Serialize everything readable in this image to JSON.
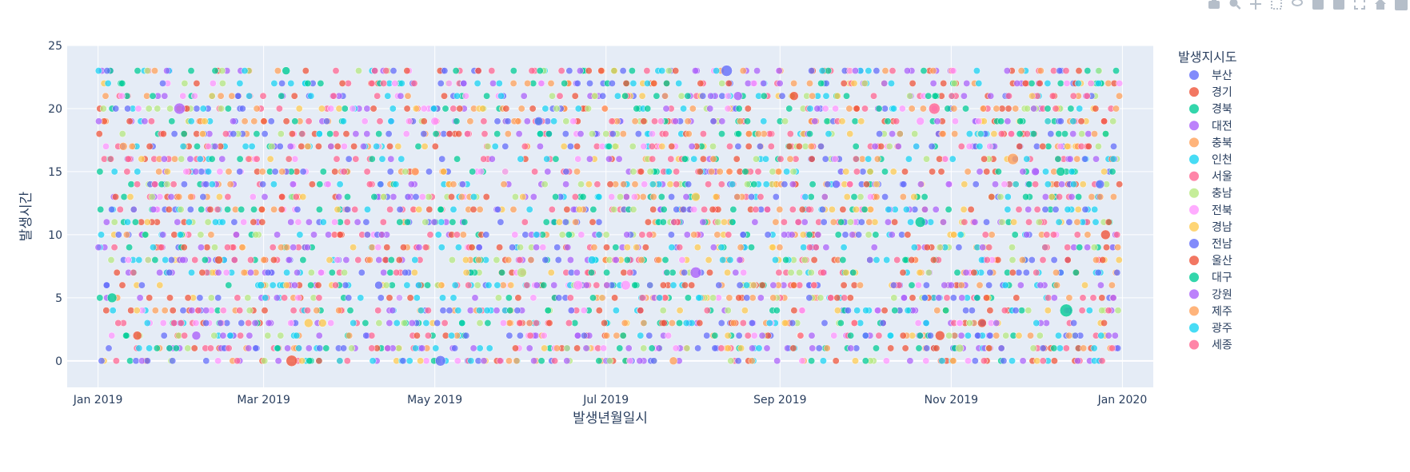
{
  "chart_data": {
    "type": "scatter",
    "title": "",
    "xlabel": "발생년월일시",
    "ylabel": "발생시간",
    "xlim": [
      "2018-12-21",
      "2020-01-12"
    ],
    "ylim": [
      -2.1,
      25
    ],
    "x_ticks": [
      {
        "date": "2019-01-01",
        "label": "Jan 2019"
      },
      {
        "date": "2019-03-01",
        "label": "Mar 2019"
      },
      {
        "date": "2019-05-01",
        "label": "May 2019"
      },
      {
        "date": "2019-07-01",
        "label": "Jul 2019"
      },
      {
        "date": "2019-09-01",
        "label": "Sep 2019"
      },
      {
        "date": "2019-11-01",
        "label": "Nov 2019"
      },
      {
        "date": "2020-01-01",
        "label": "Jan 2020"
      }
    ],
    "y_ticks": [
      0,
      5,
      10,
      15,
      20,
      25
    ],
    "grid": true,
    "legend": {
      "title": "발생지시도",
      "position": "right"
    },
    "series": [
      {
        "name": "부산",
        "color": "#636efa"
      },
      {
        "name": "경기",
        "color": "#EF553B"
      },
      {
        "name": "경북",
        "color": "#00cc96"
      },
      {
        "name": "대전",
        "color": "#ab63fa"
      },
      {
        "name": "충북",
        "color": "#FFA15A"
      },
      {
        "name": "인천",
        "color": "#19d3f3"
      },
      {
        "name": "서울",
        "color": "#FF6692"
      },
      {
        "name": "충남",
        "color": "#B6E880"
      },
      {
        "name": "전북",
        "color": "#FF97FF"
      },
      {
        "name": "경남",
        "color": "#FECB52"
      },
      {
        "name": "전남",
        "color": "#636efa"
      },
      {
        "name": "울산",
        "color": "#EF553B"
      },
      {
        "name": "대구",
        "color": "#00cc96"
      },
      {
        "name": "강원",
        "color": "#ab63fa"
      },
      {
        "name": "제주",
        "color": "#FFA15A"
      },
      {
        "name": "광주",
        "color": "#19d3f3"
      },
      {
        "name": "세종",
        "color": "#FF6692"
      }
    ],
    "points_note_free": true,
    "points": [
      [
        "2019-03-09",
        23,
        2,
        10
      ],
      [
        "2019-08-13",
        23,
        0,
        14
      ],
      [
        "2019-10-26",
        20,
        6,
        14
      ],
      [
        "2019-12-12",
        4,
        2,
        16
      ],
      [
        "2019-11-23",
        16,
        4,
        14
      ],
      [
        "2019-08-02",
        7,
        3,
        14
      ],
      [
        "2019-01-30",
        20,
        3,
        14
      ],
      [
        "2019-03-11",
        0,
        11,
        14
      ],
      [
        "2019-05-03",
        0,
        0,
        13
      ],
      [
        "2019-10-21",
        11,
        2,
        13
      ],
      [
        "2019-06-21",
        6,
        8,
        12
      ],
      [
        "2019-06-01",
        7,
        7,
        12
      ],
      [
        "2019-12-10",
        15,
        2,
        11
      ],
      [
        "2019-01-06",
        5,
        2,
        12
      ],
      [
        "2019-02-05",
        2,
        3,
        11
      ],
      [
        "2019-01-15",
        2,
        11,
        11
      ],
      [
        "2019-12-26",
        10,
        1,
        12
      ],
      [
        "2019-11-12",
        3,
        1,
        11
      ],
      [
        "2019-10-28",
        2,
        1,
        12
      ],
      [
        "2019-03-17",
        3,
        9,
        11
      ],
      [
        "2019-06-26",
        8,
        5,
        10
      ],
      [
        "2019-09-06",
        21,
        1,
        11
      ],
      [
        "2019-08-17",
        21,
        3,
        11
      ],
      [
        "2019-06-07",
        19,
        0,
        11
      ],
      [
        "2019-12-24",
        14,
        0,
        11
      ],
      [
        "2019-07-25",
        0,
        14,
        10
      ],
      [
        "2019-12-01",
        15,
        3,
        10
      ],
      [
        "2019-04-11",
        6,
        0,
        10
      ],
      [
        "2019-08-02",
        13,
        9,
        11
      ],
      [
        "2019-10-21",
        19,
        8,
        10
      ],
      [
        "2019-01-10",
        17,
        4,
        10
      ],
      [
        "2019-02-13",
        8,
        1,
        10
      ],
      [
        "2019-04-24",
        15,
        4,
        10
      ],
      [
        "2019-09-21",
        14,
        0,
        10
      ],
      [
        "2019-11-04",
        1,
        7,
        10
      ],
      [
        "2019-05-01",
        19,
        8,
        10
      ],
      [
        "2019-07-08",
        6,
        8,
        12
      ],
      [
        "2019-02-28",
        6,
        5,
        9
      ],
      [
        "2019-03-22",
        3,
        9,
        10
      ]
    ]
  }
}
